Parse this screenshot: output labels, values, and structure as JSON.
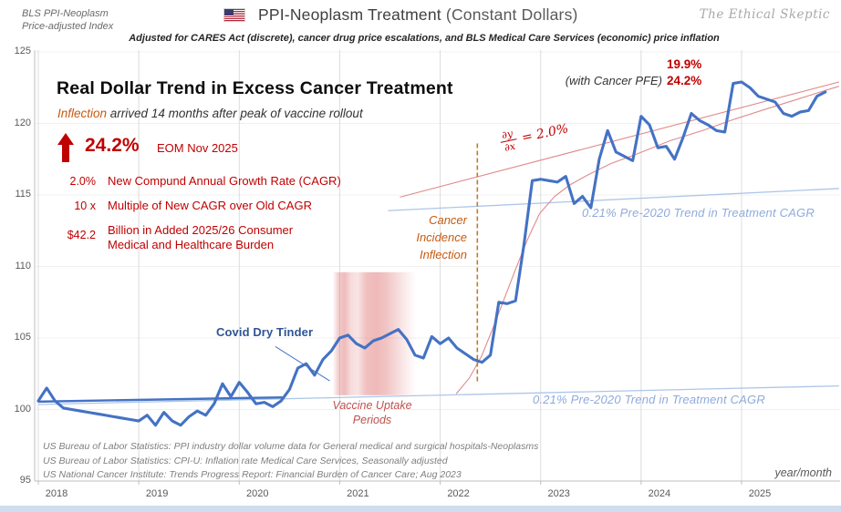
{
  "header": {
    "corner_label_line1": "BLS PPI-Neoplasm",
    "corner_label_line2": "Price-adjusted Index",
    "flag_icon": "us-flag",
    "title": "PPI-Neoplasm Treatment",
    "title_suffix": " (Constant Dollars)",
    "watermark": "The Ethical Skeptic",
    "subtitle": "Adjusted for CARES Act (discrete), cancer drug price escalations, and BLS Medical Care Services (economic) price inflation"
  },
  "annotations": {
    "main_title": "Real Dollar Trend in Excess Cancer Treatment",
    "subtitle_highlight": "Inflection",
    "subtitle_rest": " arrived 14 months after peak of vaccine rollout",
    "headline": {
      "icon": "up-arrow",
      "value": "24.2%",
      "period": "EOM Nov 2025"
    },
    "stats": [
      {
        "value": "2.0%",
        "label": "New Compund Annual Growth Rate (CAGR)"
      },
      {
        "value": "10 x",
        "label": "Multiple of New CAGR over Old CAGR"
      },
      {
        "value": "$42.2",
        "label": "Billion in Added 2025/26 Consumer Medical and Healthcare Burden"
      }
    ],
    "covid_dry_tinder": "Covid Dry Tinder",
    "vaccine_uptake_line1": "Vaccine Uptake",
    "vaccine_uptake_line2": "Periods",
    "cancer_inflection_line1": "Cancer",
    "cancer_inflection_line2": "Incidence",
    "cancer_inflection_line3": "Inflection",
    "derivative": {
      "numerator": "∂y",
      "denominator": "∂x",
      "equals": "= 2.0%"
    },
    "pfe_value_top": "19.9%",
    "pfe_label": "(with Cancer PFE)",
    "pfe_value_bottom": "24.2%",
    "pre2020_trend_upper": "0.21%  Pre-2020 Trend in Treatment CAGR",
    "pre2020_trend_lower": "0.21%  Pre-2020 Trend in Treatment CAGR"
  },
  "sources": [
    "US Bureau of Labor Statistics: PPI industry dollar volume data for General medical and surgical hospitals-Neoplasms",
    "US Bureau of Labor Statistics: CPI-U: Inflation rate Medical Care Services, Seasonally adjusted",
    "US National Cancer Institute: Trends Progress Report: Financial Burden of Cancer Care; Aug 2023"
  ],
  "axes": {
    "x_label": "year/month",
    "x_ticks": [
      "2018",
      "2019",
      "2020",
      "2021",
      "2022",
      "2023",
      "2024",
      "2025"
    ],
    "y_ticks": [
      125,
      120,
      115,
      110,
      105,
      100,
      95
    ]
  },
  "colors": {
    "series_blue": "#4472C4",
    "trend_light_blue": "#AEC6E8",
    "fit_red": "#E08A8A",
    "accent_red": "#C00000",
    "event_orange": "#C07B28",
    "band_red": "#DD6A6A"
  },
  "chart_data": {
    "type": "line",
    "title": "PPI-Neoplasm Treatment (Constant Dollars)",
    "xlabel": "year/month",
    "ylim": [
      95,
      125
    ],
    "x_range_years": [
      2018.0,
      2025.917
    ],
    "grid": "on",
    "monthly_from": "2018-01",
    "monthly_to": "2025-11",
    "series": [
      {
        "name": "PPI-Neoplasm Treatment (Constant Dollars), price-adjusted index",
        "color": "#4472C4",
        "monthly_values": [
          100.6,
          101.5,
          100.6,
          100.1,
          100.0,
          99.9,
          99.8,
          99.7,
          99.6,
          99.5,
          99.4,
          99.3,
          99.2,
          99.6,
          98.9,
          99.8,
          99.2,
          98.9,
          99.5,
          99.9,
          99.6,
          100.4,
          101.8,
          100.9,
          101.9,
          101.2,
          100.4,
          100.5,
          100.2,
          100.6,
          101.4,
          102.9,
          103.2,
          102.4,
          103.5,
          104.1,
          105.0,
          105.2,
          104.6,
          104.3,
          104.8,
          105.0,
          105.3,
          105.6,
          104.9,
          103.8,
          103.6,
          105.1,
          104.6,
          105.0,
          104.3,
          103.9,
          103.5,
          103.3,
          103.8,
          107.5,
          107.4,
          107.6,
          111.5,
          116.0,
          116.1,
          116.0,
          115.9,
          116.3,
          114.4,
          114.9,
          114.1,
          117.5,
          119.5,
          118.0,
          117.7,
          117.4,
          120.5,
          119.9,
          118.3,
          118.4,
          117.5,
          119.0,
          120.7,
          120.2,
          119.9,
          119.5,
          119.4,
          122.8,
          122.9,
          122.5,
          121.9,
          121.7,
          121.5,
          120.7,
          120.5,
          120.8,
          120.9,
          121.9,
          122.2
        ]
      }
    ],
    "trend_lines": [
      {
        "name": "pre-2020-trend-extended-lower",
        "cagr": "0.21%",
        "color": "#AEC6E8",
        "width": 1.3,
        "points": [
          [
            2018.0,
            100.35
          ],
          [
            2025.97,
            101.65
          ]
        ]
      },
      {
        "name": "pre-2020-trend-extended-upper",
        "cagr": "0.21%",
        "color": "#AEC6E8",
        "width": 1.3,
        "points": [
          [
            2021.48,
            113.9
          ],
          [
            2025.97,
            115.45
          ]
        ]
      },
      {
        "name": "pre-2020-trend-fit-segment",
        "color": "#4472C4",
        "width": 2.4,
        "points": [
          [
            2018.0,
            100.55
          ],
          [
            2020.43,
            100.85
          ]
        ]
      },
      {
        "name": "new-cagr-2pct-line",
        "cagr": "2.0%",
        "color": "#E08A8A",
        "width": 1.1,
        "points": [
          [
            2021.6,
            114.85
          ],
          [
            2025.97,
            122.9
          ]
        ]
      }
    ],
    "fit_curve": {
      "name": "post-inflection-growth-fit",
      "color": "#E08A8A",
      "width": 1.1,
      "points": [
        [
          2022.16,
          101.1
        ],
        [
          2022.29,
          102.2
        ],
        [
          2022.41,
          103.7
        ],
        [
          2022.52,
          105.6
        ],
        [
          2022.63,
          107.6
        ],
        [
          2022.75,
          109.8
        ],
        [
          2022.87,
          111.9
        ],
        [
          2022.99,
          113.7
        ],
        [
          2023.14,
          114.9
        ],
        [
          2023.29,
          115.7
        ],
        [
          2023.47,
          116.4
        ],
        [
          2023.7,
          117.2
        ],
        [
          2023.97,
          117.9
        ],
        [
          2024.29,
          118.8
        ],
        [
          2024.61,
          119.5
        ],
        [
          2024.93,
          120.3
        ],
        [
          2025.24,
          121.0
        ],
        [
          2025.56,
          121.7
        ],
        [
          2025.83,
          122.3
        ],
        [
          2025.97,
          122.6
        ]
      ]
    },
    "event_band": {
      "label": "Vaccine Uptake Periods",
      "x_range": [
        2020.93,
        2021.76
      ],
      "v_range": [
        101.0,
        109.6
      ]
    },
    "event_line": {
      "label": "Cancer Incidence Inflection",
      "style": "dashed",
      "color": "#C07B28",
      "x": 2022.37,
      "v_range": [
        101.9,
        118.6
      ]
    },
    "pointer_line": {
      "for": "Covid Dry Tinder",
      "color": "#4472C4",
      "points": [
        [
          2020.36,
          104.4
        ],
        [
          2020.9,
          102.0
        ]
      ]
    }
  }
}
